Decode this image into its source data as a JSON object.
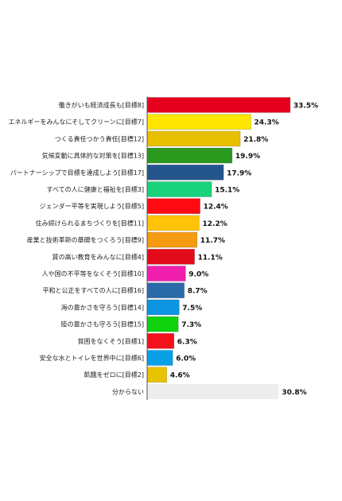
{
  "chart_data": {
    "type": "bar",
    "orientation": "horizontal",
    "title": "",
    "xlabel": "",
    "ylabel": "",
    "xlim": [
      0,
      35
    ],
    "grid": false,
    "categories": [
      "働きがいも経済成長も[目標8]",
      "エネルギーをみんなにそしてクリーンに[目標7]",
      "つくる責任つかう責任[目標12]",
      "気候変動に具体的な対策を[目標13]",
      "パートナーシップで目標を達成しよう[目標17]",
      "すべての人に健康と福祉を[目標3]",
      "ジェンダー平等を実現しよう[目標5]",
      "住み続けられるまちづくりを[目標11]",
      "産業と技術革新の基礎をつくろう[目標9]",
      "質の高い教育をみんなに[目標4]",
      "人や国の不平等をなくそう[目標10]",
      "平和と公正をすべての人に[目標16]",
      "海の豊かさを守ろう[目標14]",
      "陸の豊かさも守ろう[目標15]",
      "貧困をなくそう[目標1]",
      "安全な水とトイレを世界中に[目標6]",
      "飢餓をゼロに[目標2]",
      "分からない"
    ],
    "values": [
      33.5,
      24.3,
      21.8,
      19.9,
      17.9,
      15.1,
      12.4,
      12.2,
      11.7,
      11.1,
      9.0,
      8.7,
      7.5,
      7.3,
      6.3,
      6.0,
      4.6,
      30.8
    ],
    "value_labels": [
      "33.5%",
      "24.3%",
      "21.8%",
      "19.9%",
      "17.9%",
      "15.1%",
      "12.4%",
      "12.2%",
      "11.7%",
      "11.1%",
      "9.0%",
      "8.7%",
      "7.5%",
      "7.3%",
      "6.3%",
      "6.0%",
      "4.6%",
      "30.8%"
    ],
    "colors": [
      "#e5001e",
      "#ffe600",
      "#e8c000",
      "#2a9a1e",
      "#23558c",
      "#18d27c",
      "#ff0a12",
      "#ffc40a",
      "#f59a11",
      "#e30a1a",
      "#f01eac",
      "#2b6aa8",
      "#0d94e0",
      "#10d20e",
      "#f5111c",
      "#0aa0e8",
      "#e8c400",
      "#ededed"
    ]
  }
}
